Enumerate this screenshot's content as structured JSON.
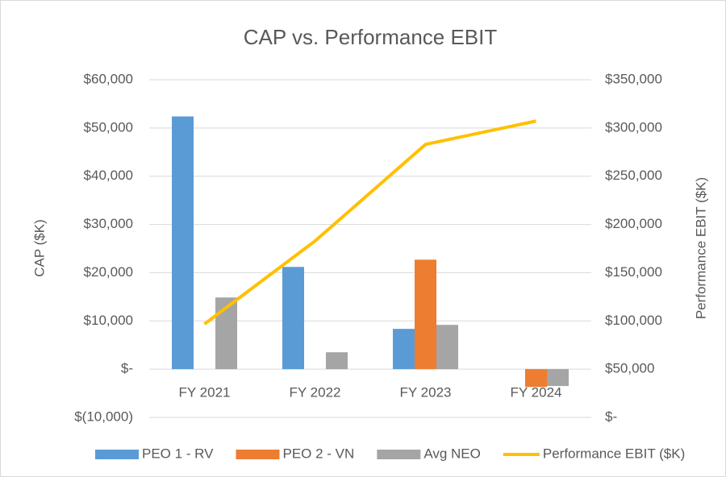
{
  "chart_data": {
    "type": "bar",
    "title": "CAP vs. Performance EBIT",
    "y_label": "CAP ($K)",
    "y2_label": "Performance EBIT ($K)",
    "categories": [
      "FY 2021",
      "FY 2022",
      "FY 2023",
      "FY 2024"
    ],
    "series": [
      {
        "name": "PEO 1 - RV",
        "color": "#5b9bd5",
        "type": "bar",
        "values": [
          52400,
          21200,
          8350,
          null
        ]
      },
      {
        "name": "PEO 2 - VN",
        "color": "#ed7d31",
        "type": "bar",
        "values": [
          null,
          null,
          22700,
          -3700
        ]
      },
      {
        "name": "Avg NEO",
        "color": "#a5a5a5",
        "type": "bar",
        "values": [
          14860,
          3500,
          9180,
          -3500
        ]
      },
      {
        "name": "Performance EBIT ($K)",
        "color": "#ffc000",
        "type": "line",
        "axis": "y2",
        "values": [
          96800,
          182800,
          283000,
          307200
        ]
      }
    ],
    "ylim": [
      -10000,
      60000
    ],
    "yticks": [
      {
        "value": -10000,
        "label": "$(10,000)"
      },
      {
        "value": 0,
        "label": "$-"
      },
      {
        "value": 10000,
        "label": "$10,000"
      },
      {
        "value": 20000,
        "label": "$20,000"
      },
      {
        "value": 30000,
        "label": "$30,000"
      },
      {
        "value": 40000,
        "label": "$40,000"
      },
      {
        "value": 50000,
        "label": "$50,000"
      },
      {
        "value": 60000,
        "label": "$60,000"
      }
    ],
    "y2lim": [
      0,
      350000
    ],
    "y2ticks": [
      {
        "value": 0,
        "label": "$-"
      },
      {
        "value": 50000,
        "label": "$50,000"
      },
      {
        "value": 100000,
        "label": "$100,000"
      },
      {
        "value": 150000,
        "label": "$150,000"
      },
      {
        "value": 200000,
        "label": "$200,000"
      },
      {
        "value": 250000,
        "label": "$250,000"
      },
      {
        "value": 300000,
        "label": "$300,000"
      },
      {
        "value": 350000,
        "label": "$350,000"
      }
    ],
    "grid": true,
    "legend": "bottom"
  }
}
